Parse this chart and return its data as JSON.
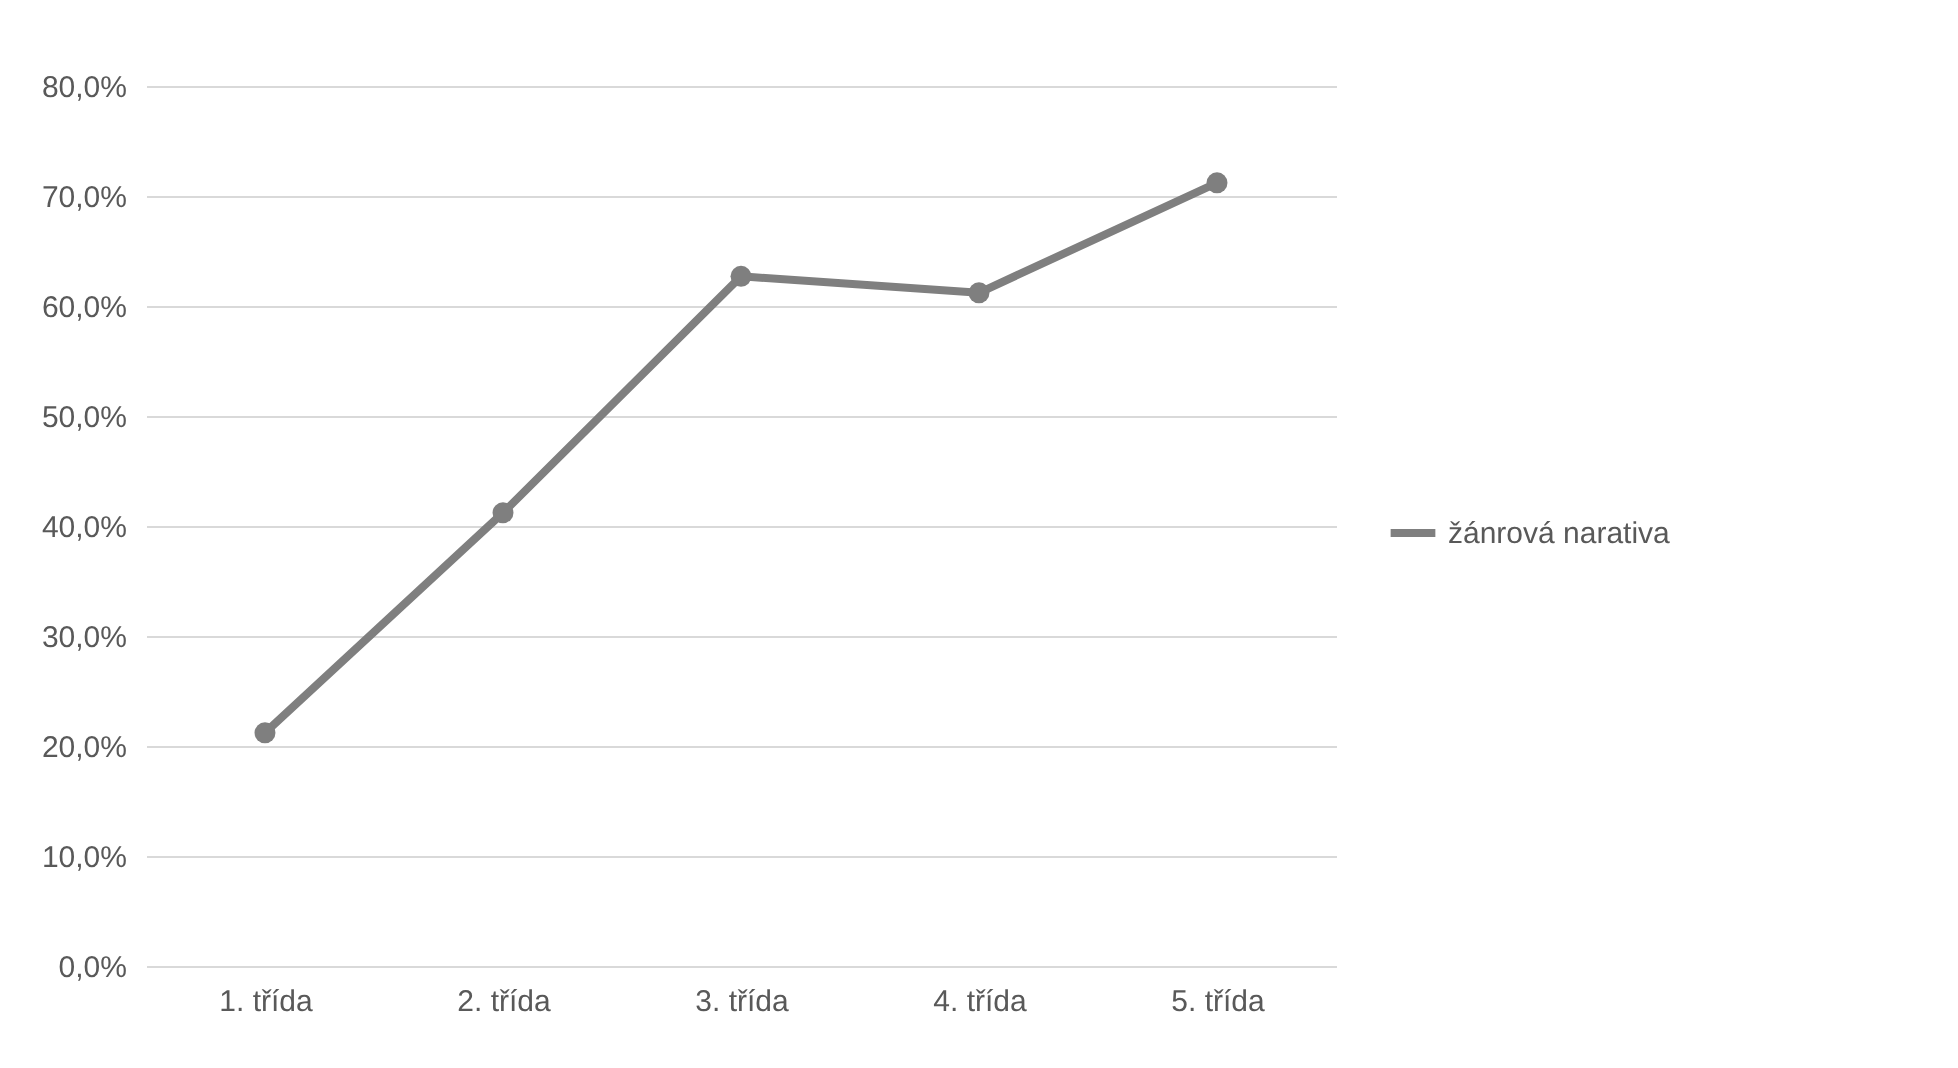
{
  "chart_data": {
    "type": "line",
    "categories": [
      "1. třída",
      "2. třída",
      "3. třída",
      "4. třída",
      "5. třída"
    ],
    "series": [
      {
        "name": "žánrová narativa",
        "color": "#7f7f7f",
        "values": [
          21.2,
          41.2,
          62.7,
          61.2,
          71.2
        ]
      }
    ],
    "ylim": [
      0,
      80
    ],
    "yticks": [
      {
        "value": 0,
        "label": "0,0%"
      },
      {
        "value": 10,
        "label": "10,0%"
      },
      {
        "value": 20,
        "label": "20,0%"
      },
      {
        "value": 30,
        "label": "30,0%"
      },
      {
        "value": 40,
        "label": "40,0%"
      },
      {
        "value": 50,
        "label": "50,0%"
      },
      {
        "value": 60,
        "label": "60,0%"
      },
      {
        "value": 70,
        "label": "70,0%"
      },
      {
        "value": 80,
        "label": "80,0%"
      }
    ],
    "grid": "y",
    "legend": "right",
    "marker": "circle",
    "line_style": "solid"
  }
}
